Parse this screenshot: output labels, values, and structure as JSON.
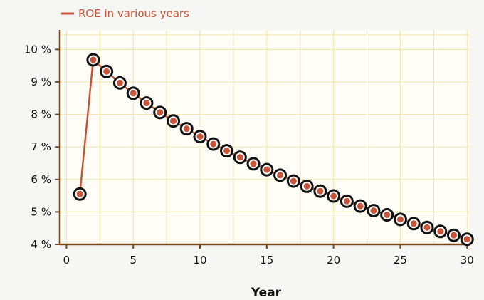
{
  "colors": {
    "background": "#f6f6f4",
    "plot_background": "#fffef6",
    "grid": "#f3e3a8",
    "axis": "#7a4a1e",
    "series": "#c8553a",
    "marker_outline": "#111111",
    "marker_fill": "#c8553a"
  },
  "chart_data": {
    "type": "line",
    "title": "",
    "xlabel": "Year",
    "ylabel": "",
    "x_ticks": [
      "0",
      "5",
      "10",
      "15",
      "20",
      "25",
      "30"
    ],
    "y_ticks": [
      "4 %",
      "5 %",
      "6 %",
      "7 %",
      "8 %",
      "9 %",
      "10 %"
    ],
    "xlim": [
      -0.5,
      30.2
    ],
    "ylim": [
      4,
      10.6
    ],
    "grid": true,
    "legend": {
      "position": "top-left",
      "entries": [
        "ROE in various years"
      ]
    },
    "series": [
      {
        "name": "ROE in various years",
        "x": [
          1,
          2,
          3,
          4,
          5,
          6,
          7,
          8,
          9,
          10,
          11,
          12,
          13,
          14,
          15,
          16,
          17,
          18,
          19,
          20,
          21,
          22,
          23,
          24,
          25,
          26,
          27,
          28,
          29,
          30
        ],
        "y": [
          5.55,
          9.68,
          9.32,
          8.97,
          8.65,
          8.35,
          8.06,
          7.8,
          7.56,
          7.32,
          7.09,
          6.88,
          6.68,
          6.48,
          6.3,
          6.13,
          5.95,
          5.79,
          5.64,
          5.49,
          5.33,
          5.18,
          5.04,
          4.91,
          4.77,
          4.64,
          4.52,
          4.4,
          4.28,
          4.16
        ]
      }
    ]
  }
}
